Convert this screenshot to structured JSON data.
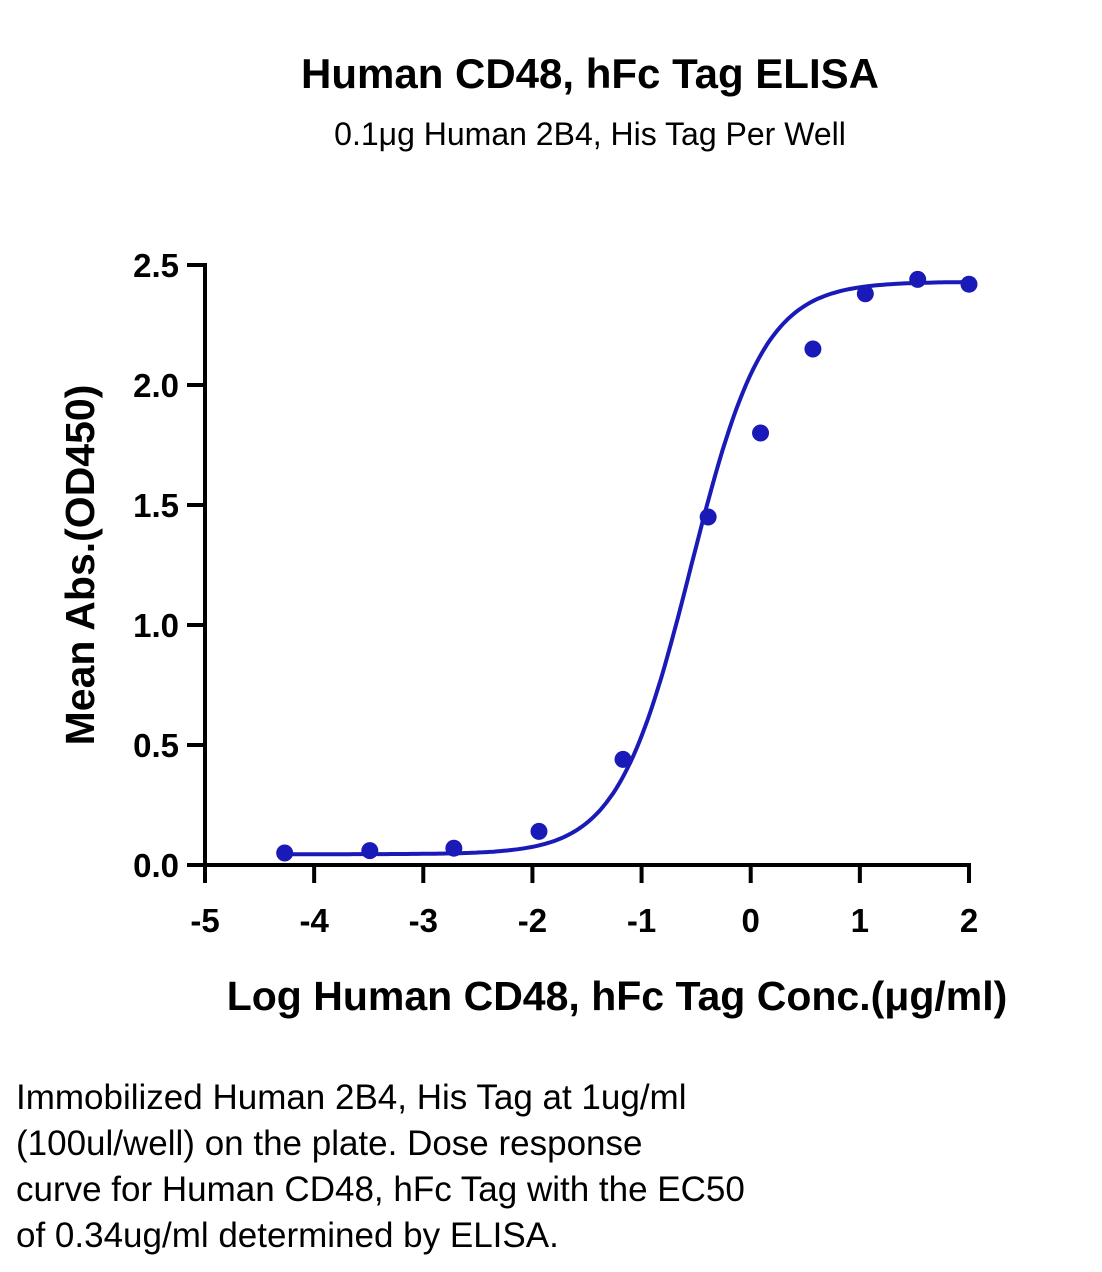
{
  "chart_data": {
    "type": "scatter",
    "title": "Human CD48, hFc Tag ELISA",
    "subtitle": "0.1μg Human 2B4, His Tag Per Well",
    "xlabel": "Log Human CD48, hFc Tag Conc.(μg/ml)",
    "ylabel": "Mean Abs.(OD450)",
    "xlim": [
      -5,
      2
    ],
    "ylim": [
      0,
      2.5
    ],
    "x_ticks": [
      -5,
      -4,
      -3,
      -2,
      -1,
      0,
      1,
      2
    ],
    "y_ticks": [
      0.0,
      0.5,
      1.0,
      1.5,
      2.0,
      2.5
    ],
    "x_tick_labels": [
      "-5",
      "-4",
      "-3",
      "-2",
      "-1",
      "0",
      "1",
      "2"
    ],
    "y_tick_labels": [
      "0.0",
      "0.5",
      "1.0",
      "1.5",
      "2.0",
      "2.5"
    ],
    "grid": false,
    "legend": "none",
    "series": [
      {
        "points_x": [
          -4.27,
          -3.49,
          -2.72,
          -1.94,
          -1.17,
          -0.39,
          0.09,
          0.57,
          1.05,
          1.53,
          2.0
        ],
        "points_y": [
          0.05,
          0.06,
          0.07,
          0.14,
          0.44,
          1.45,
          1.8,
          2.15,
          2.38,
          2.44,
          2.42
        ],
        "fit": "4PL",
        "color": "#1a1ab8"
      }
    ],
    "annotation": "Immobilized Human 2B4, His Tag at 1ug/ml\n(100ul/well) on the plate. Dose response\ncurve for Human CD48, hFc Tag with the EC50\nof 0.34ug/ml determined by ELISA."
  }
}
